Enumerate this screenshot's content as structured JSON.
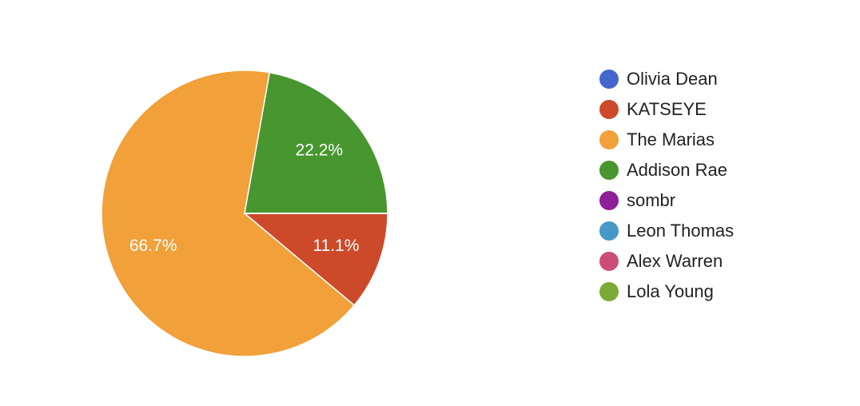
{
  "chart_data": {
    "type": "pie",
    "categories": [
      "Olivia Dean",
      "KATSEYE",
      "The Marias",
      "Addison Rae",
      "sombr",
      "Leon Thomas",
      "Alex Warren",
      "Lola Young"
    ],
    "values": [
      0,
      11.1,
      66.7,
      22.2,
      0,
      0,
      0,
      0
    ],
    "value_labels": [
      null,
      "11.1%",
      "66.7%",
      "22.2%",
      null,
      null,
      null,
      null
    ],
    "colors": [
      "#4466cc",
      "#cc4a2a",
      "#f1a03a",
      "#47962f",
      "#8e1e9a",
      "#4698c6",
      "#cc4e78",
      "#7aaa35"
    ],
    "legend": "right"
  }
}
